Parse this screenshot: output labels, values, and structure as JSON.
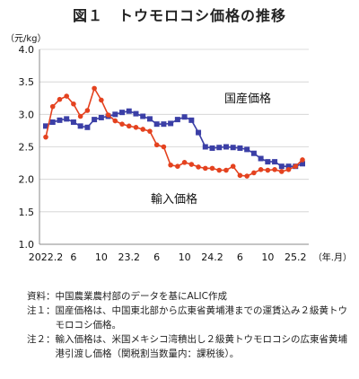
{
  "title": "図１　トウモロコシ価格の推移",
  "chart_data": {
    "type": "line",
    "ylabel": "（元/kg）",
    "xlabel": "（年.月）",
    "ylim": [
      1.0,
      4.0
    ],
    "yticks": [
      "1.0",
      "1.5",
      "2.0",
      "2.5",
      "3.0",
      "3.5",
      "4.0"
    ],
    "x_tick_labels": [
      {
        "i": 0,
        "label": "2022.2"
      },
      {
        "i": 4,
        "label": "6"
      },
      {
        "i": 8,
        "label": "10"
      },
      {
        "i": 12,
        "label": "23.2"
      },
      {
        "i": 16,
        "label": "6"
      },
      {
        "i": 20,
        "label": "10"
      },
      {
        "i": 24,
        "label": "24.2"
      },
      {
        "i": 28,
        "label": "6"
      },
      {
        "i": 32,
        "label": "10"
      },
      {
        "i": 36,
        "label": "25.2"
      }
    ],
    "series": [
      {
        "name": "国産価格",
        "marker": "square",
        "color": "#3b3fa6",
        "values": [
          2.82,
          2.88,
          2.91,
          2.93,
          2.88,
          2.82,
          2.8,
          2.92,
          2.95,
          2.97,
          3.0,
          3.03,
          3.05,
          3.01,
          2.97,
          2.93,
          2.85,
          2.85,
          2.86,
          2.92,
          2.96,
          2.91,
          2.72,
          2.5,
          2.48,
          2.49,
          2.5,
          2.49,
          2.48,
          2.46,
          2.4,
          2.32,
          2.27,
          2.27,
          2.2,
          2.2,
          2.2,
          2.24
        ]
      },
      {
        "name": "輸入価格",
        "marker": "circle",
        "color": "#e4421f",
        "values": [
          2.65,
          3.12,
          3.23,
          3.28,
          3.16,
          2.97,
          3.06,
          3.4,
          3.22,
          2.99,
          2.9,
          2.85,
          2.82,
          2.8,
          2.77,
          2.74,
          2.53,
          2.5,
          2.22,
          2.2,
          2.26,
          2.23,
          2.19,
          2.17,
          2.17,
          2.14,
          2.14,
          2.2,
          2.06,
          2.05,
          2.1,
          2.15,
          2.14,
          2.15,
          2.12,
          2.15,
          2.2,
          2.3
        ]
      }
    ],
    "annotations": [
      "国産価格",
      "輸入価格"
    ]
  },
  "notes": [
    {
      "head": "資料：",
      "body": "中国農業農村部のデータを基にALIC作成"
    },
    {
      "head": "注１：",
      "body": "国産価格は、中国東北部から広東省黄埔港までの運賃込み２級黄トウモロコシ価格。"
    },
    {
      "head": "注２：",
      "body": "輸入価格は、米国メキシコ湾積出し２級黄トウモロコシの広東省黄埔港引渡し価格（関税割当数量内：課税後）。"
    }
  ]
}
